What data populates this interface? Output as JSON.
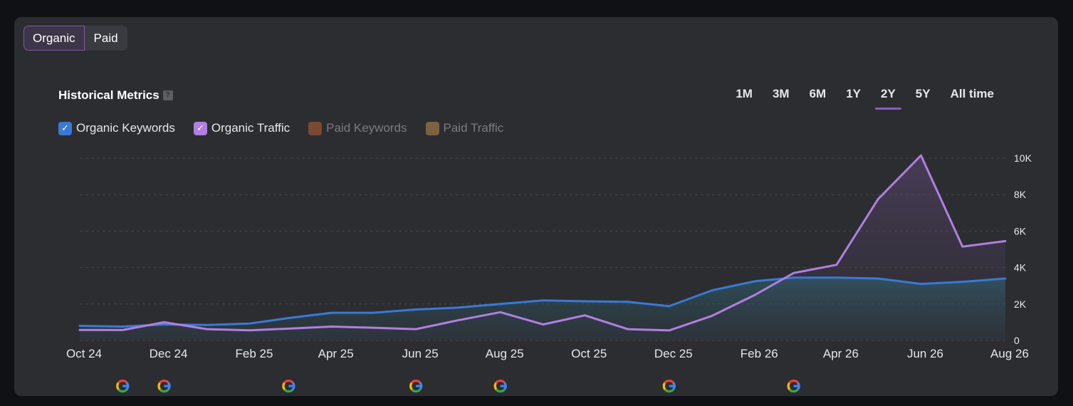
{
  "tabs": [
    {
      "label": "Organic",
      "active": true
    },
    {
      "label": "Paid",
      "active": false
    }
  ],
  "header": {
    "title": "Historical Metrics",
    "help_glyph": "?"
  },
  "time_ranges": [
    {
      "label": "1M",
      "active": false
    },
    {
      "label": "3M",
      "active": false
    },
    {
      "label": "6M",
      "active": false
    },
    {
      "label": "1Y",
      "active": false
    },
    {
      "label": "2Y",
      "active": true
    },
    {
      "label": "5Y",
      "active": false
    },
    {
      "label": "All time",
      "active": false
    }
  ],
  "legend": [
    {
      "label": "Organic Keywords",
      "checked": true,
      "color": "#3a79d6"
    },
    {
      "label": "Organic Traffic",
      "checked": true,
      "color": "#b07fe0"
    },
    {
      "label": "Paid Keywords",
      "checked": false,
      "color": "#7a4a32"
    },
    {
      "label": "Paid Traffic",
      "checked": false,
      "color": "#7a6440"
    }
  ],
  "chart_data": {
    "type": "area",
    "x_ticks": [
      "Oct 24",
      "Dec 24",
      "Feb 25",
      "Apr 25",
      "Jun 25",
      "Aug 25",
      "Oct 25",
      "Dec 25",
      "Feb 26",
      "Apr 26",
      "Jun 26",
      "Aug 26"
    ],
    "y_ticks": [
      "0",
      "2K",
      "4K",
      "6K",
      "8K",
      "10K"
    ],
    "ylim": [
      0,
      10000
    ],
    "grid": true,
    "series": [
      {
        "name": "Organic Keywords",
        "color": "#3a79d6",
        "points": [
          [
            "2024-10-01",
            800
          ],
          [
            "2024-11-01",
            760
          ],
          [
            "2024-12-01",
            880
          ],
          [
            "2025-01-01",
            850
          ],
          [
            "2025-02-01",
            930
          ],
          [
            "2025-03-01",
            1230
          ],
          [
            "2025-04-01",
            1520
          ],
          [
            "2025-05-01",
            1520
          ],
          [
            "2025-06-01",
            1700
          ],
          [
            "2025-07-01",
            1800
          ],
          [
            "2025-08-01",
            2000
          ],
          [
            "2025-09-01",
            2200
          ],
          [
            "2025-10-01",
            2150
          ],
          [
            "2025-11-01",
            2120
          ],
          [
            "2025-12-01",
            1880
          ],
          [
            "2026-01-01",
            2750
          ],
          [
            "2026-02-01",
            3250
          ],
          [
            "2026-03-01",
            3450
          ],
          [
            "2026-04-01",
            3450
          ],
          [
            "2026-05-01",
            3400
          ],
          [
            "2026-06-01",
            3100
          ],
          [
            "2026-07-01",
            3220
          ],
          [
            "2026-08-01",
            3400
          ]
        ]
      },
      {
        "name": "Organic Traffic",
        "color": "#b07fe0",
        "points": [
          [
            "2024-10-01",
            580
          ],
          [
            "2024-11-01",
            570
          ],
          [
            "2024-12-01",
            1000
          ],
          [
            "2025-01-01",
            620
          ],
          [
            "2025-02-01",
            560
          ],
          [
            "2025-03-01",
            650
          ],
          [
            "2025-04-01",
            760
          ],
          [
            "2025-05-01",
            700
          ],
          [
            "2025-06-01",
            620
          ],
          [
            "2025-07-01",
            1100
          ],
          [
            "2025-08-01",
            1550
          ],
          [
            "2025-09-01",
            880
          ],
          [
            "2025-10-01",
            1380
          ],
          [
            "2025-11-01",
            620
          ],
          [
            "2025-12-01",
            550
          ],
          [
            "2026-01-01",
            1350
          ],
          [
            "2026-02-01",
            2500
          ],
          [
            "2026-03-01",
            3700
          ],
          [
            "2026-04-01",
            4150
          ],
          [
            "2026-05-01",
            7750
          ],
          [
            "2026-06-01",
            10150
          ],
          [
            "2026-07-01",
            5150
          ],
          [
            "2026-08-01",
            5450
          ]
        ]
      }
    ],
    "annotations": [
      {
        "type": "google-update",
        "date": "2024-11-01"
      },
      {
        "type": "google-update",
        "date": "2024-12-01"
      },
      {
        "type": "google-update",
        "date": "2025-03-01"
      },
      {
        "type": "google-update",
        "date": "2025-06-01"
      },
      {
        "type": "google-update",
        "date": "2025-08-01"
      },
      {
        "type": "google-update",
        "date": "2025-12-01"
      },
      {
        "type": "google-update",
        "date": "2026-03-01"
      }
    ]
  }
}
